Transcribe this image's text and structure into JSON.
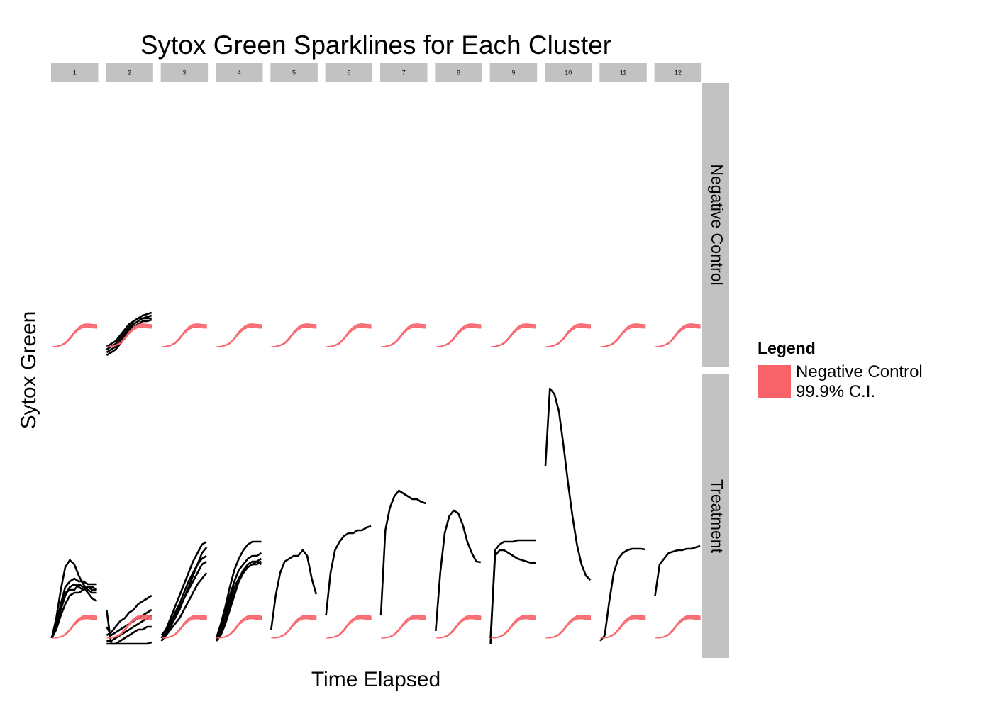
{
  "chart_data": {
    "type": "line",
    "title": "Sytox Green Sparklines for Each Cluster",
    "x_label": "Time Elapsed",
    "y_label": "Sytox Green",
    "xlim": [
      0,
      10
    ],
    "ylim": [
      0,
      100
    ],
    "x": [
      0,
      1,
      2,
      3,
      4,
      5,
      6,
      7,
      8,
      9,
      10
    ],
    "line_color": "#000000",
    "columns": [
      "1",
      "2",
      "3",
      "4",
      "5",
      "6",
      "7",
      "8",
      "9",
      "10",
      "11",
      "12"
    ],
    "legend": {
      "title": "Legend"
    },
    "band": {
      "name": "Negative Control 99.9% C.I.",
      "color": "#f8636a",
      "lower": [
        7,
        7,
        7.3,
        8,
        9.5,
        11.5,
        13,
        13.7,
        13.8,
        13.6,
        13.5
      ],
      "upper": [
        7,
        7.2,
        7.6,
        8.5,
        10.2,
        12.4,
        14,
        14.9,
        15.1,
        14.9,
        14.8
      ]
    },
    "rows": [
      {
        "label": "Negative Control",
        "panels": [
          [],
          [
            [
              6,
              7,
              8,
              10,
              12,
              14,
              16,
              17,
              18,
              18.5,
              19
            ],
            [
              5,
              6,
              7,
              9,
              11,
              13,
              15,
              16,
              17,
              17.5,
              18
            ],
            [
              7,
              8,
              9,
              11,
              13,
              15,
              16,
              17,
              17,
              17,
              17
            ],
            [
              4,
              5,
              6,
              8,
              10,
              12,
              14,
              15,
              16,
              16,
              16.5
            ]
          ],
          [],
          [],
          [],
          [],
          [],
          [],
          [],
          [],
          [],
          []
        ]
      },
      {
        "label": "Treatment",
        "panels": [
          [
            [
              7,
              14,
              24,
              32,
              34.5,
              33,
              29,
              26,
              24,
              23,
              23
            ],
            [
              7,
              12,
              19,
              25,
              27,
              28,
              27,
              27,
              26,
              26,
              26
            ],
            [
              7,
              11,
              17,
              22,
              25,
              26,
              25,
              24,
              25,
              25,
              24
            ],
            [
              7,
              12,
              18,
              23,
              24,
              24,
              26,
              25,
              23,
              21,
              20
            ],
            [
              7,
              10,
              15,
              19,
              22,
              23,
              23,
              24,
              25,
              24,
              24
            ]
          ],
          [
            [
              11,
              8,
              9,
              10,
              11,
              12,
              13,
              14,
              15,
              16,
              17
            ],
            [
              6,
              6,
              7,
              8,
              9,
              10,
              11,
              12,
              13,
              14,
              15
            ],
            [
              17,
              5,
              5,
              6,
              7,
              8,
              9,
              10,
              10,
              11,
              11
            ],
            [
              5,
              5,
              5,
              5,
              5,
              5,
              5,
              5,
              5,
              5,
              5.5
            ],
            [
              8,
              9,
              11,
              13,
              14,
              16,
              17,
              19,
              20,
              21,
              22
            ]
          ],
          [
            [
              7,
              10,
              14,
              18,
              22,
              26,
              30,
              34,
              37,
              40,
              41
            ],
            [
              6,
              9,
              12,
              16,
              19,
              23,
              27,
              30,
              33,
              35,
              36
            ],
            [
              8,
              10,
              13,
              15,
              18,
              21,
              24,
              27,
              30,
              33,
              34
            ],
            [
              7,
              8,
              10,
              12,
              14,
              17,
              20,
              23,
              26,
              28,
              30
            ],
            [
              6,
              8,
              11,
              14,
              17,
              21,
              25,
              29,
              33,
              37,
              39
            ]
          ],
          [
            [
              7,
              12,
              18,
              25,
              31,
              35,
              38,
              40,
              41,
              41,
              41
            ],
            [
              7,
              11,
              16,
              22,
              27,
              31,
              33,
              35,
              36,
              36,
              37
            ],
            [
              6,
              10,
              15,
              20,
              25,
              28,
              31,
              33,
              34,
              34,
              35
            ],
            [
              7,
              9,
              13,
              18,
              23,
              27,
              30,
              32,
              33,
              33,
              34
            ],
            [
              6,
              8,
              12,
              17,
              22,
              27,
              30,
              32,
              33,
              34,
              33
            ]
          ],
          [
            [
              10,
              22,
              30,
              34,
              35,
              36,
              36,
              38,
              36,
              28,
              22.5
            ]
          ],
          [
            [
              15,
              30,
              38,
              41,
              43,
              44,
              44,
              45,
              45,
              46,
              46.5
            ]
          ],
          [
            [
              15,
              45,
              53,
              57,
              59,
              58,
              57,
              56,
              56,
              55,
              54.5
            ]
          ],
          [
            [
              9.5,
              30,
              44,
              50,
              52,
              51,
              47,
              41,
              37,
              34,
              33.75
            ]
          ],
          [
            [
              5,
              38,
              40,
              41,
              41,
              41,
              41.5,
              41.5,
              41.5,
              41.5,
              41.5
            ],
            [
              7,
              36,
              38,
              38,
              37,
              36,
              35,
              34.5,
              34,
              33.5,
              33.5
            ]
          ],
          [
            [
              67.75,
              95,
              93,
              87,
              75,
              62,
              50,
              40,
              33,
              29,
              27.5
            ]
          ],
          [
            [
              6,
              8,
              20,
              30,
              35,
              37,
              38,
              38.5,
              38.5,
              38.5,
              38.25
            ]
          ],
          [
            [
              22,
              33,
              35,
              37,
              37.5,
              38,
              38,
              38.5,
              38.5,
              39,
              39.5
            ]
          ]
        ]
      }
    ]
  }
}
